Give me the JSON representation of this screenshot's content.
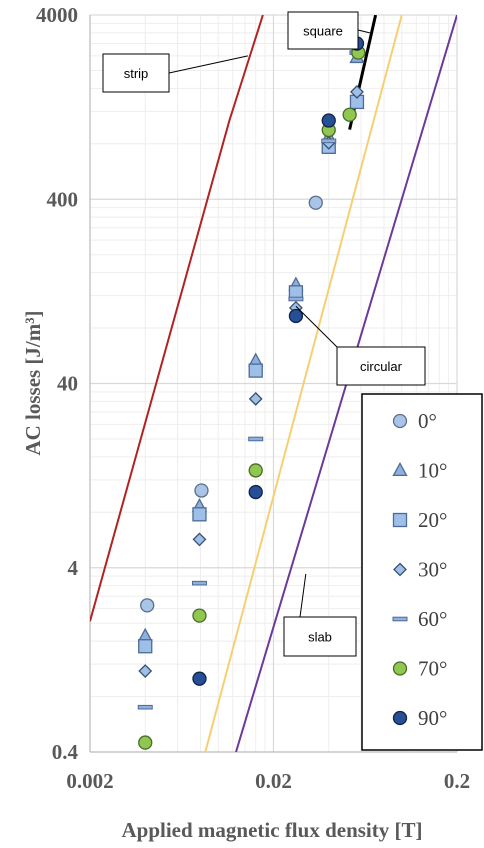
{
  "chart_data": {
    "type": "scatter",
    "xlabel": "Applied magnetic flux density [T]",
    "ylabel": "AC losses [J/m³]",
    "x_scale": "log",
    "y_scale": "log",
    "xlim": [
      0.002,
      0.2
    ],
    "ylim": [
      0.4,
      4000
    ],
    "x_ticks": [
      {
        "value": 0.002,
        "label": "0.002"
      },
      {
        "value": 0.02,
        "label": "0.02"
      },
      {
        "value": 0.2,
        "label": "0.2"
      }
    ],
    "y_ticks": [
      {
        "value": 0.4,
        "label": "0.4"
      },
      {
        "value": 4,
        "label": "4"
      },
      {
        "value": 40,
        "label": "40"
      },
      {
        "value": 400,
        "label": "400"
      },
      {
        "value": 4000,
        "label": "4000"
      }
    ],
    "grid": true,
    "legend_position": "bottom-right",
    "series": [
      {
        "name": "0°",
        "marker": "circle",
        "color": "#a9c4e6",
        "stroke": "#5a6f8a",
        "points": [
          [
            0.0041,
            2.5
          ],
          [
            0.0081,
            10.5
          ],
          [
            0.034,
            383
          ]
        ]
      },
      {
        "name": "10°",
        "marker": "triangle",
        "color": "#8fb0dc",
        "stroke": "#4d6b94",
        "points": [
          [
            0.004,
            1.7
          ],
          [
            0.0079,
            8.6
          ],
          [
            0.016,
            53
          ],
          [
            0.0265,
            137
          ],
          [
            0.04,
            870
          ],
          [
            0.057,
            2350
          ]
        ]
      },
      {
        "name": "20°",
        "marker": "square",
        "color": "#9dbfe8",
        "stroke": "#4d6b94",
        "points": [
          [
            0.004,
            1.5
          ],
          [
            0.0079,
            7.8
          ],
          [
            0.016,
            47
          ],
          [
            0.0265,
            125
          ],
          [
            0.04,
            770
          ],
          [
            0.057,
            1350
          ]
        ]
      },
      {
        "name": "30°",
        "marker": "diamond",
        "color": "#9dbfe8",
        "stroke": "#3a4f6e",
        "points": [
          [
            0.004,
            1.1
          ],
          [
            0.0079,
            5.7
          ],
          [
            0.016,
            33
          ],
          [
            0.0265,
            103
          ],
          [
            0.04,
            810
          ],
          [
            0.057,
            1530
          ]
        ]
      },
      {
        "name": "60°",
        "marker": "dash",
        "color": "#8fb0dc",
        "stroke": "#4d6b94",
        "points": [
          [
            0.004,
            0.7
          ],
          [
            0.0079,
            3.3
          ],
          [
            0.016,
            20
          ],
          [
            0.0265,
            115
          ],
          [
            0.04,
            830
          ],
          [
            0.057,
            2500
          ]
        ]
      },
      {
        "name": "70°",
        "marker": "circle",
        "color": "#8fc750",
        "stroke": "#4a6b2a",
        "points": [
          [
            0.004,
            0.45
          ],
          [
            0.0079,
            2.2
          ],
          [
            0.016,
            13.5
          ],
          [
            0.04,
            950
          ],
          [
            0.052,
            1150
          ],
          [
            0.058,
            2500
          ]
        ]
      },
      {
        "name": "90°",
        "marker": "circle",
        "color": "#264f95",
        "stroke": "#0f2248",
        "points": [
          [
            0.0079,
            1.0
          ],
          [
            0.016,
            10.3
          ],
          [
            0.0265,
            93
          ],
          [
            0.04,
            1070
          ],
          [
            0.057,
            2800
          ]
        ]
      }
    ],
    "lines": [
      {
        "name": "strip",
        "color": "#b22222",
        "points": [
          [
            0.002,
            2.05
          ],
          [
            0.0115,
            1070
          ],
          [
            0.0175,
            4000
          ]
        ]
      },
      {
        "name": "square",
        "color": "#000000",
        "points": [
          [
            0.052,
            955
          ],
          [
            0.072,
            4000
          ]
        ]
      },
      {
        "name": "circular",
        "color": "#f7cf73",
        "points": [
          [
            0.0085,
            0.4
          ],
          [
            0.1,
            4000
          ]
        ]
      },
      {
        "name": "slab",
        "color": "#6b3a99",
        "points": [
          [
            0.0125,
            0.4
          ],
          [
            0.2,
            4000
          ]
        ]
      }
    ],
    "annotations": [
      {
        "text": "strip",
        "target": [
          0.0145,
          2400
        ]
      },
      {
        "text": "square",
        "target": [
          0.067,
          3200
        ]
      },
      {
        "text": "circular",
        "target": [
          0.0265,
          105
        ]
      },
      {
        "text": "slab",
        "target": [
          0.03,
          3.7
        ]
      }
    ]
  }
}
